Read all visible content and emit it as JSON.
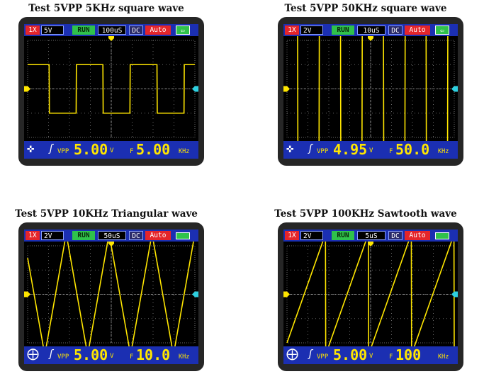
{
  "panels": [
    {
      "caption": "Test 5VPP 5KHz square wave",
      "header": {
        "probe": "1X",
        "volt_div": "5V",
        "run": "RUN",
        "time_div": "100uS",
        "coupling": "DC",
        "trigger_mode": "Auto",
        "battery": "⇦"
      },
      "footer": {
        "move_icon": "✜",
        "trigger_edge": "ʃ",
        "vpp_label": "VPP",
        "vpp_value": "5.00",
        "vpp_unit": "V",
        "freq_label": "F",
        "freq_value": "5.00",
        "freq_unit": "KHz"
      },
      "waveform": "square",
      "signal": {
        "periods": 3.1,
        "amplitude_div": 1.0,
        "phase": 0.1
      }
    },
    {
      "caption": "Test 5VPP 50KHz square wave",
      "header": {
        "probe": "1X",
        "volt_div": "2V",
        "run": "RUN",
        "time_div": "10uS",
        "coupling": "DC",
        "trigger_mode": "Auto",
        "battery": "⇦"
      },
      "footer": {
        "move_icon": "✜",
        "trigger_edge": "ʃ",
        "vpp_label": "VPP",
        "vpp_value": "4.95",
        "vpp_unit": "V",
        "freq_label": "F",
        "freq_value": "50.0",
        "freq_unit": "KHz"
      },
      "waveform": "square",
      "signal": {
        "periods": 3.9,
        "amplitude_div": 2.5,
        "phase": 0.25
      }
    },
    {
      "caption": "Test 5VPP 10KHz Triangular wave",
      "header": {
        "probe": "1X",
        "volt_div": "2V",
        "run": "RUN",
        "time_div": "50uS",
        "coupling": "DC",
        "trigger_mode": "Auto",
        "battery": ""
      },
      "footer": {
        "move_icon": "⨁",
        "trigger_edge": "ʃ",
        "vpp_label": "VPP",
        "vpp_value": "5.00",
        "vpp_unit": "V",
        "freq_label": "F",
        "freq_value": "10.0",
        "freq_unit": "KHz"
      },
      "waveform": "triangle",
      "signal": {
        "periods": 3.9,
        "amplitude_div": 2.5,
        "phase": 0.1
      }
    },
    {
      "caption": "Test 5VPP 100KHz Sawtooth wave",
      "header": {
        "probe": "1X",
        "volt_div": "2V",
        "run": "RUN",
        "time_div": "5uS",
        "coupling": "DC",
        "trigger_mode": "Auto",
        "battery": ""
      },
      "footer": {
        "move_icon": "⨁",
        "trigger_edge": "ʃ",
        "vpp_label": "VPP",
        "vpp_value": "5.00",
        "vpp_unit": "V",
        "freq_label": "F",
        "freq_value": "100",
        "freq_unit": "KHz"
      },
      "waveform": "sawtooth",
      "signal": {
        "periods": 3.9,
        "amplitude_div": 2.5,
        "phase": 0.1
      }
    }
  ],
  "colors": {
    "trace": "#ffe600",
    "marker_cyan": "#2ed0e0",
    "grid": "#6a6a6a",
    "bar_bg": "#1b2fb2"
  }
}
